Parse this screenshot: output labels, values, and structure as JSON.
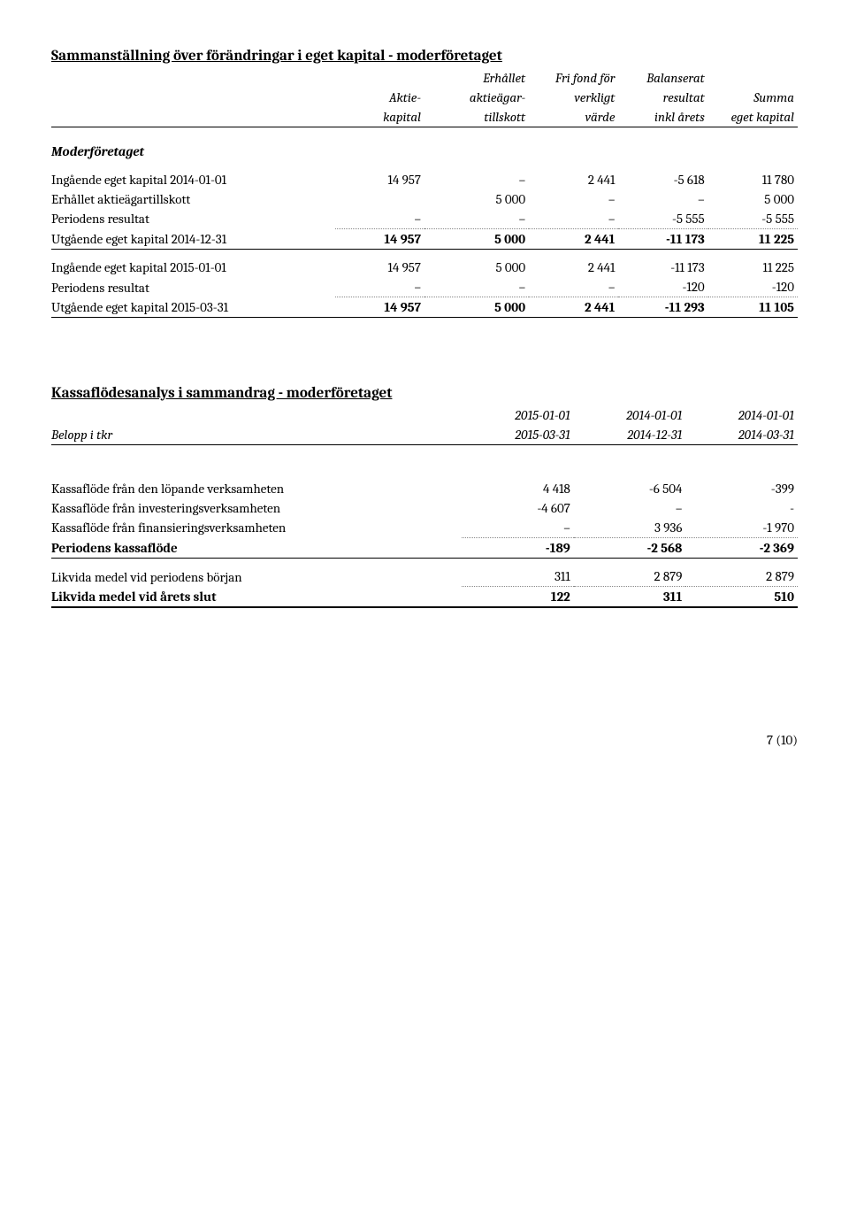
{
  "equity": {
    "title": "Sammanställning över förändringar i eget kapital - moderföretaget",
    "columns": [
      {
        "l1": "",
        "l2": "Aktie-",
        "l3": "kapital"
      },
      {
        "l1": "Erhållet",
        "l2": "aktieägar-",
        "l3": "tillskott"
      },
      {
        "l1": "Fri fond för",
        "l2": "verkligt",
        "l3": "värde"
      },
      {
        "l1": "Balanserat",
        "l2": "resultat",
        "l3": "inkl årets"
      },
      {
        "l1": "",
        "l2": "Summa",
        "l3": "eget kapital"
      }
    ],
    "section_label": "Moderföretaget",
    "rows1": [
      {
        "label": "Ingående eget kapital 2014-01-01",
        "v": [
          "14 957",
          "–",
          "2 441",
          "-5 618",
          "11 780"
        ]
      },
      {
        "label": "Erhållet aktieägartillskott",
        "v": [
          "",
          "5 000",
          "–",
          "–",
          "5 000"
        ]
      },
      {
        "label": "Periodens resultat",
        "v": [
          "–",
          "–",
          "–",
          "-5 555",
          "-5 555"
        ],
        "dotted": true
      },
      {
        "label": "Utgående eget kapital 2014-12-31",
        "v": [
          "14 957",
          "5 000",
          "2 441",
          "-11 173",
          "11 225"
        ],
        "bold": true,
        "border": true
      }
    ],
    "rows2": [
      {
        "label": "Ingående eget kapital 2015-01-01",
        "v": [
          "14 957",
          "5 000",
          "2 441",
          "-11 173",
          "11 225"
        ]
      },
      {
        "label": "Periodens resultat",
        "v": [
          "–",
          "–",
          "–",
          "-120",
          "-120"
        ],
        "dotted": true
      },
      {
        "label": "Utgående eget kapital 2015-03-31",
        "v": [
          "14 957",
          "5 000",
          "2 441",
          "-11 293",
          "11 105"
        ],
        "bold": true,
        "border": true
      }
    ]
  },
  "cashflow": {
    "title": "Kassaflödesanalys i sammandrag - moderföretaget",
    "header_row1": [
      "",
      "2015-01-01",
      "2014-01-01",
      "2014-01-01"
    ],
    "header_row2": [
      "Belopp i tkr",
      "2015-03-31",
      "2014-12-31",
      "2014-03-31"
    ],
    "rows": [
      {
        "label": "Kassaflöde från den löpande verksamheten",
        "v": [
          "4 418",
          "-6 504",
          "-399"
        ]
      },
      {
        "label": "Kassaflöde från investeringsverksamheten",
        "v": [
          "-4 607",
          "–",
          "-"
        ]
      },
      {
        "label": "Kassaflöde från finansieringsverksamheten",
        "v": [
          "–",
          "3 936",
          "-1 970"
        ],
        "dotted": true
      },
      {
        "label": "Periodens kassaflöde",
        "v": [
          "-189",
          "-2 568",
          "-2 369"
        ],
        "bold": true,
        "border": true
      }
    ],
    "rows2": [
      {
        "label": "Likvida medel vid periodens början",
        "v": [
          "311",
          "2 879",
          "2 879"
        ],
        "dotted": true
      },
      {
        "label": "Likvida medel vid årets slut",
        "v": [
          "122",
          "311",
          "510"
        ],
        "bold": true,
        "border_thick": true
      }
    ]
  },
  "page_number": "7 (10)"
}
